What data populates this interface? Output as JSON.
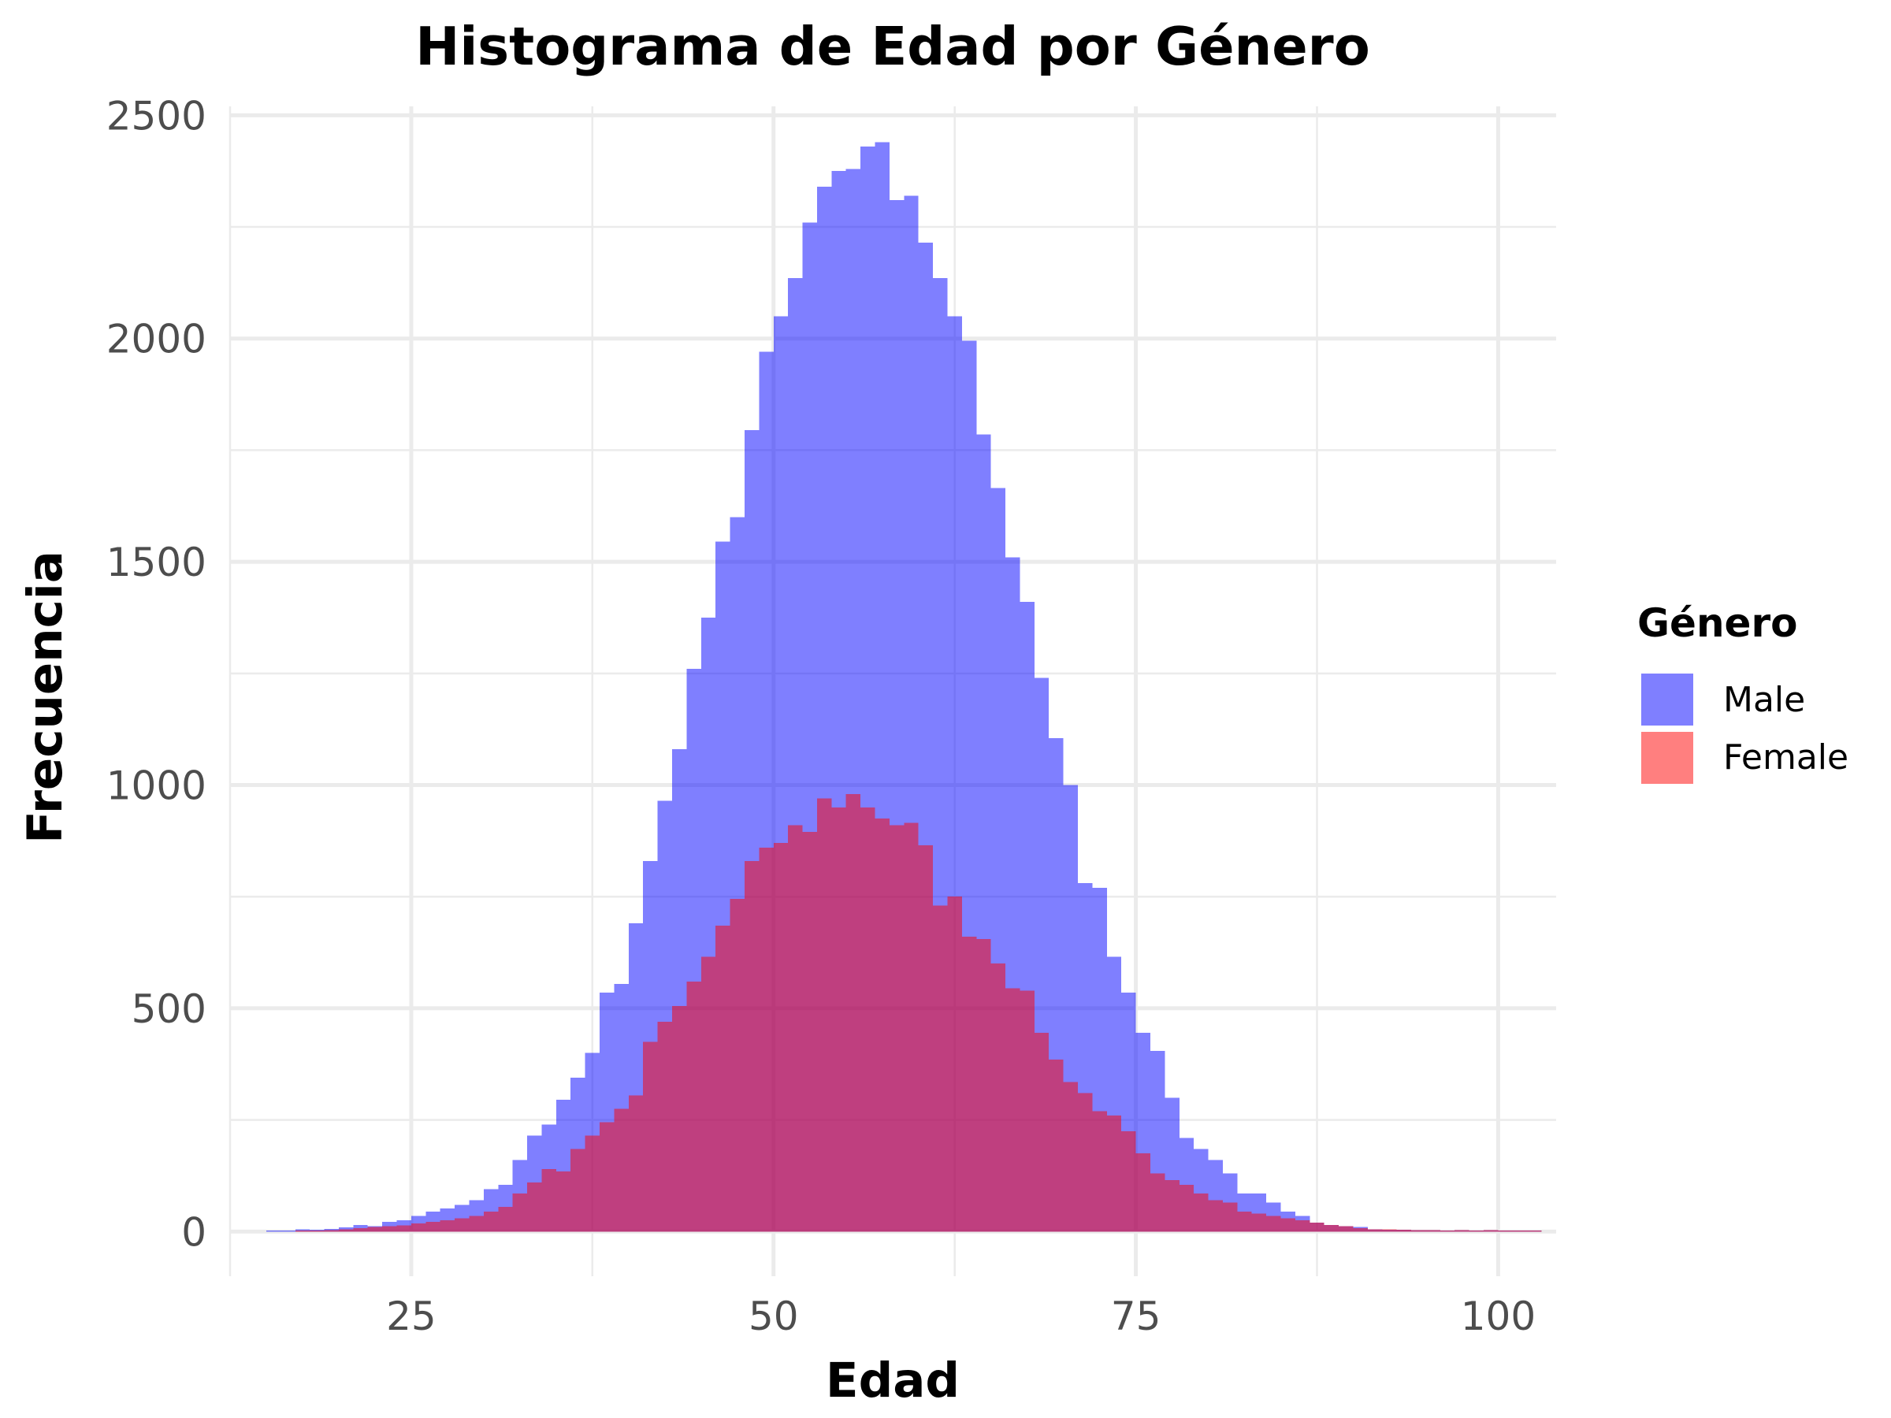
{
  "chart_data": {
    "type": "bar",
    "title": "Histograma de Edad por Género",
    "xlabel": "Edad",
    "ylabel": "Frecuencia",
    "xlim": [
      12.5,
      104
    ],
    "ylim": [
      -100,
      2520
    ],
    "x_ticks": [
      25,
      50,
      75,
      100
    ],
    "y_ticks": [
      0,
      500,
      1000,
      1500,
      2000,
      2500
    ],
    "grid": true,
    "legend": {
      "title": "Género",
      "placement": "right"
    },
    "bin_width": 1,
    "bin_start": 15,
    "series": [
      {
        "name": "Male",
        "color": "#0000ff",
        "opacity": 0.5,
        "values": [
          2,
          2,
          5,
          4,
          6,
          9,
          15,
          12,
          22,
          25,
          35,
          45,
          52,
          60,
          70,
          95,
          105,
          160,
          215,
          240,
          295,
          345,
          400,
          535,
          555,
          690,
          830,
          965,
          1080,
          1260,
          1375,
          1545,
          1600,
          1795,
          1970,
          2050,
          2135,
          2260,
          2340,
          2375,
          2380,
          2430,
          2440,
          2310,
          2320,
          2215,
          2135,
          2050,
          1995,
          1785,
          1665,
          1510,
          1410,
          1240,
          1105,
          1000,
          780,
          770,
          615,
          535,
          445,
          405,
          300,
          210,
          185,
          160,
          130,
          85,
          85,
          65,
          45,
          35,
          20,
          15,
          12,
          10,
          5,
          4,
          4,
          3,
          3,
          2,
          3,
          2,
          3,
          2,
          2,
          2
        ]
      },
      {
        "name": "Female",
        "color": "#ff0000",
        "opacity": 0.5,
        "values": [
          0,
          0,
          2,
          2,
          3,
          5,
          8,
          10,
          12,
          14,
          18,
          22,
          25,
          30,
          35,
          45,
          55,
          85,
          110,
          140,
          135,
          185,
          215,
          245,
          275,
          305,
          425,
          470,
          505,
          560,
          615,
          685,
          745,
          830,
          860,
          870,
          910,
          895,
          970,
          950,
          980,
          950,
          925,
          910,
          915,
          865,
          730,
          750,
          660,
          655,
          600,
          545,
          540,
          445,
          385,
          335,
          310,
          270,
          260,
          225,
          175,
          130,
          115,
          105,
          85,
          70,
          65,
          45,
          40,
          35,
          30,
          25,
          20,
          15,
          12,
          8,
          5,
          5,
          4,
          3,
          3,
          2,
          3,
          2,
          3,
          2,
          2,
          2
        ]
      }
    ]
  }
}
